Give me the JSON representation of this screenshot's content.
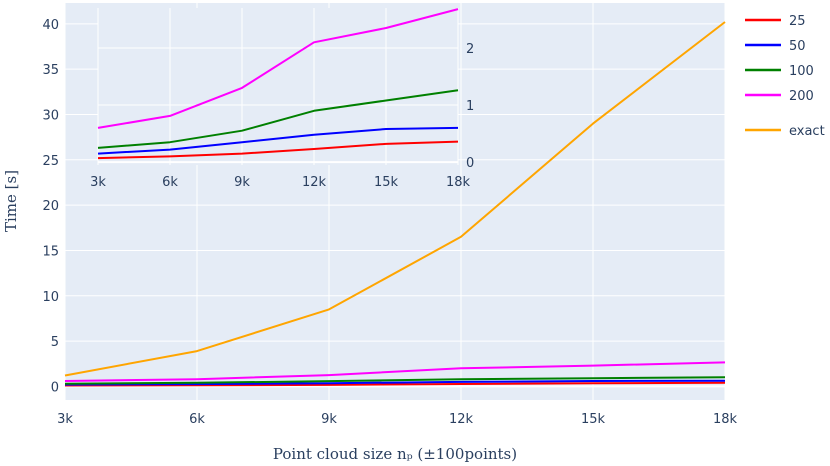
{
  "chart_data": [
    {
      "type": "line",
      "xlabel": "Point cloud size nₚ (±100points)",
      "ylabel": "Time [s]",
      "x": [
        3000,
        6000,
        9000,
        12000,
        15000,
        18000
      ],
      "x_tick_labels": [
        "3k",
        "6k",
        "9k",
        "12k",
        "15k",
        "18k"
      ],
      "xlim": [
        3000,
        18000
      ],
      "ylim": [
        -1.5,
        42.3
      ],
      "y_ticks": [
        0,
        5,
        10,
        15,
        20,
        25,
        30,
        35,
        40
      ],
      "grid": true,
      "legend_position": "right",
      "series": [
        {
          "name": "25",
          "color": "#ff0000",
          "values": [
            0.1,
            0.12,
            0.17,
            0.27,
            0.35,
            0.4
          ]
        },
        {
          "name": "50",
          "color": "#0000ff",
          "values": [
            0.2,
            0.25,
            0.35,
            0.5,
            0.6,
            0.62
          ]
        },
        {
          "name": "100",
          "color": "#008000",
          "values": [
            0.3,
            0.4,
            0.58,
            0.78,
            0.9,
            1.0
          ]
        },
        {
          "name": "200",
          "color": "#ff00ff",
          "values": [
            0.6,
            0.8,
            1.25,
            2.0,
            2.3,
            2.65
          ]
        },
        {
          "name": "exact",
          "color": "#ffa500",
          "values": [
            1.2,
            3.9,
            8.5,
            16.5,
            29.0,
            40.2
          ]
        }
      ]
    },
    {
      "type": "line",
      "inset": true,
      "x": [
        3000,
        6000,
        9000,
        12000,
        15000,
        18000
      ],
      "x_tick_labels": [
        "3k",
        "6k",
        "9k",
        "12k",
        "15k",
        "18k"
      ],
      "xlim": [
        3000,
        18000
      ],
      "ylim": [
        -0.05,
        2.7
      ],
      "y_ticks": [
        0,
        1,
        2
      ],
      "y_axis_side": "right",
      "grid": true,
      "series": [
        {
          "name": "25",
          "color": "#ff0000",
          "values": [
            0.07,
            0.1,
            0.15,
            0.23,
            0.32,
            0.36
          ]
        },
        {
          "name": "50",
          "color": "#0000ff",
          "values": [
            0.15,
            0.22,
            0.35,
            0.48,
            0.58,
            0.6
          ]
        },
        {
          "name": "100",
          "color": "#008000",
          "values": [
            0.25,
            0.35,
            0.55,
            0.9,
            1.08,
            1.26
          ]
        },
        {
          "name": "200",
          "color": "#ff00ff",
          "values": [
            0.6,
            0.81,
            1.3,
            2.1,
            2.35,
            2.68
          ]
        }
      ]
    }
  ]
}
